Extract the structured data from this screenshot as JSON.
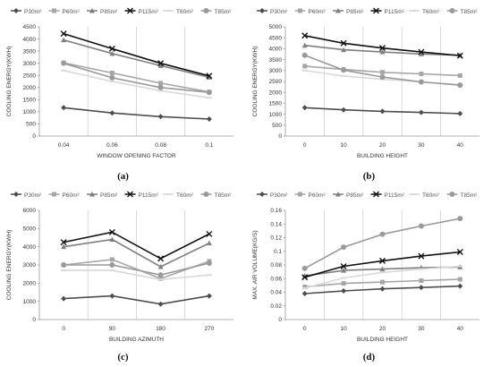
{
  "chart_data": [
    {
      "type": "line",
      "panel_label": "(a)",
      "xlabel": "WINDOW OPENING FACTOR",
      "ylabel": "COOLING ENERGY(KWH)",
      "x_ticks": [
        "0.04",
        "0.06",
        "0.08",
        "0.1"
      ],
      "ylim": [
        0,
        4500
      ],
      "y_ticks": [
        "0",
        "500",
        "1000",
        "1500",
        "2000",
        "2500",
        "3000",
        "3500",
        "4000",
        "4500"
      ],
      "legend_position": "top",
      "series": [
        {
          "name": "P30m²",
          "color": "#4d4d4d",
          "marker": "diamond",
          "values": [
            1170,
            950,
            800,
            700
          ]
        },
        {
          "name": "P60m²",
          "color": "#a6a6a6",
          "marker": "square",
          "values": [
            3020,
            2600,
            2180,
            1820
          ]
        },
        {
          "name": "P85m²",
          "color": "#7f7f7f",
          "marker": "triangle",
          "values": [
            3960,
            3400,
            2900,
            2420
          ]
        },
        {
          "name": "P115m²",
          "color": "#111111",
          "marker": "x",
          "values": [
            4220,
            3600,
            3000,
            2480
          ]
        },
        {
          "name": "T60m²",
          "color": "#d9d9d9",
          "marker": "dash",
          "values": [
            2700,
            2250,
            1870,
            1580
          ]
        },
        {
          "name": "T85m²",
          "color": "#9a9a9a",
          "marker": "circle",
          "values": [
            3000,
            2400,
            2000,
            1800
          ]
        }
      ]
    },
    {
      "type": "line",
      "panel_label": "(b)",
      "xlabel": "BUILDING HEIGHT",
      "ylabel": "COOLING ENERGY(KWH)",
      "x_ticks": [
        "0",
        "10",
        "20",
        "30",
        "40"
      ],
      "ylim": [
        0,
        5000
      ],
      "y_ticks": [
        "0",
        "500",
        "1000",
        "1500",
        "2000",
        "2500",
        "3000",
        "3500",
        "4000",
        "4500",
        "5000"
      ],
      "legend_position": "top",
      "series": [
        {
          "name": "P30m²",
          "color": "#4d4d4d",
          "marker": "diamond",
          "values": [
            1300,
            1200,
            1130,
            1080,
            1030
          ]
        },
        {
          "name": "P60m²",
          "color": "#a6a6a6",
          "marker": "square",
          "values": [
            3200,
            3050,
            2920,
            2850,
            2770
          ]
        },
        {
          "name": "P85m²",
          "color": "#7f7f7f",
          "marker": "triangle",
          "values": [
            4150,
            3950,
            3850,
            3760,
            3700
          ]
        },
        {
          "name": "P115m²",
          "color": "#111111",
          "marker": "x",
          "values": [
            4600,
            4250,
            4030,
            3850,
            3680
          ]
        },
        {
          "name": "T60m²",
          "color": "#d9d9d9",
          "marker": "dash",
          "values": [
            3000,
            2750,
            2600,
            2480,
            2350
          ]
        },
        {
          "name": "T85m²",
          "color": "#9a9a9a",
          "marker": "circle",
          "values": [
            3700,
            3020,
            2700,
            2480,
            2330
          ]
        }
      ]
    },
    {
      "type": "line",
      "panel_label": "(c)",
      "xlabel": "BUILDING AZIMUTH",
      "ylabel": "COOLING ENERGY(KWH)",
      "x_ticks": [
        "0",
        "90",
        "180",
        "270"
      ],
      "ylim": [
        0,
        6000
      ],
      "y_ticks": [
        "0",
        "1000",
        "2000",
        "3000",
        "4000",
        "5000",
        "6000"
      ],
      "legend_position": "top",
      "series": [
        {
          "name": "P30m²",
          "color": "#4d4d4d",
          "marker": "diamond",
          "values": [
            1150,
            1300,
            850,
            1300
          ]
        },
        {
          "name": "P60m²",
          "color": "#a6a6a6",
          "marker": "square",
          "values": [
            3000,
            3300,
            2250,
            3200
          ]
        },
        {
          "name": "P85m²",
          "color": "#7f7f7f",
          "marker": "triangle",
          "values": [
            4000,
            4400,
            2900,
            4200
          ]
        },
        {
          "name": "P115m²",
          "color": "#111111",
          "marker": "x",
          "values": [
            4250,
            4800,
            3350,
            4700
          ]
        },
        {
          "name": "T60m²",
          "color": "#d9d9d9",
          "marker": "dash",
          "values": [
            2700,
            2700,
            2200,
            2450
          ]
        },
        {
          "name": "T85m²",
          "color": "#9a9a9a",
          "marker": "circle",
          "values": [
            3000,
            3000,
            2450,
            3100
          ]
        }
      ]
    },
    {
      "type": "line",
      "panel_label": "(d)",
      "xlabel": "BUILDING HEIGHT",
      "ylabel": "MAX. AIR VOLUME(KG/S)",
      "x_ticks": [
        "0",
        "10",
        "20",
        "30",
        "40"
      ],
      "ylim": [
        0,
        0.16
      ],
      "y_ticks": [
        "0",
        "0.02",
        "0.04",
        "0.06",
        "0.08",
        "0.1",
        "0.12",
        "0.14",
        "0.16"
      ],
      "legend_position": "top",
      "series": [
        {
          "name": "P30m²",
          "color": "#4d4d4d",
          "marker": "diamond",
          "values": [
            0.038,
            0.042,
            0.045,
            0.047,
            0.049
          ]
        },
        {
          "name": "P60m²",
          "color": "#a6a6a6",
          "marker": "square",
          "values": [
            0.048,
            0.053,
            0.055,
            0.057,
            0.059
          ]
        },
        {
          "name": "P85m²",
          "color": "#7f7f7f",
          "marker": "triangle",
          "values": [
            0.064,
            0.072,
            0.074,
            0.076,
            0.077
          ]
        },
        {
          "name": "P115m²",
          "color": "#111111",
          "marker": "x",
          "values": [
            0.062,
            0.078,
            0.086,
            0.093,
            0.099
          ]
        },
        {
          "name": "T60m²",
          "color": "#d9d9d9",
          "marker": "dash",
          "values": [
            0.046,
            0.061,
            0.069,
            0.074,
            0.078
          ]
        },
        {
          "name": "T85m²",
          "color": "#9a9a9a",
          "marker": "circle",
          "values": [
            0.075,
            0.106,
            0.125,
            0.137,
            0.148
          ]
        }
      ]
    }
  ]
}
